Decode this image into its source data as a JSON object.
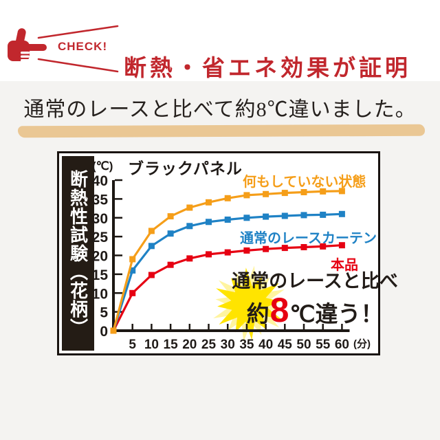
{
  "header": {
    "check_label": "CHECK!",
    "title": "断熱・省エネ効果が証明",
    "subtitle": "通常のレースと比べて約8℃違いました。"
  },
  "colors": {
    "accent_red": "#c1272d",
    "tan_underline": "#eac794",
    "bg_gray": "#f4f3f1",
    "burst_yellow": "#ffe400",
    "burst_pale": "#fff4a0",
    "axis_black": "#1c1713"
  },
  "chart_data": {
    "type": "line",
    "title": "ブラックパネル",
    "side_label": "断熱性試験（花柄）",
    "y_unit": "(℃)",
    "x_unit": "(分)",
    "ylim": [
      0,
      40
    ],
    "y_ticks": [
      0,
      5,
      10,
      15,
      20,
      25,
      30,
      35,
      40
    ],
    "x": [
      0,
      5,
      10,
      15,
      20,
      25,
      30,
      35,
      40,
      45,
      50,
      55,
      60
    ],
    "series": [
      {
        "name": "何もしていない状態",
        "color": "#f59e19",
        "values": [
          0,
          19,
          26.5,
          30.4,
          32.7,
          34.1,
          35.2,
          36,
          36.3,
          36.6,
          36.8,
          37,
          37.1
        ]
      },
      {
        "name": "通常のレースカーテン",
        "color": "#1f82c5",
        "values": [
          0,
          16,
          22.5,
          25.8,
          27.8,
          28.9,
          29.5,
          30,
          30.3,
          30.5,
          30.7,
          30.8,
          31
        ]
      },
      {
        "name": "本品",
        "color": "#e60012",
        "values": [
          0,
          10,
          14.8,
          17.5,
          19.2,
          20.3,
          20.8,
          21.3,
          21.7,
          22,
          22.2,
          22.4,
          22.7
        ]
      }
    ],
    "annotation": {
      "line1": "通常のレースと比べ",
      "prefix": "約",
      "value": "8",
      "unit": "℃",
      "suffix": "違う！"
    }
  }
}
